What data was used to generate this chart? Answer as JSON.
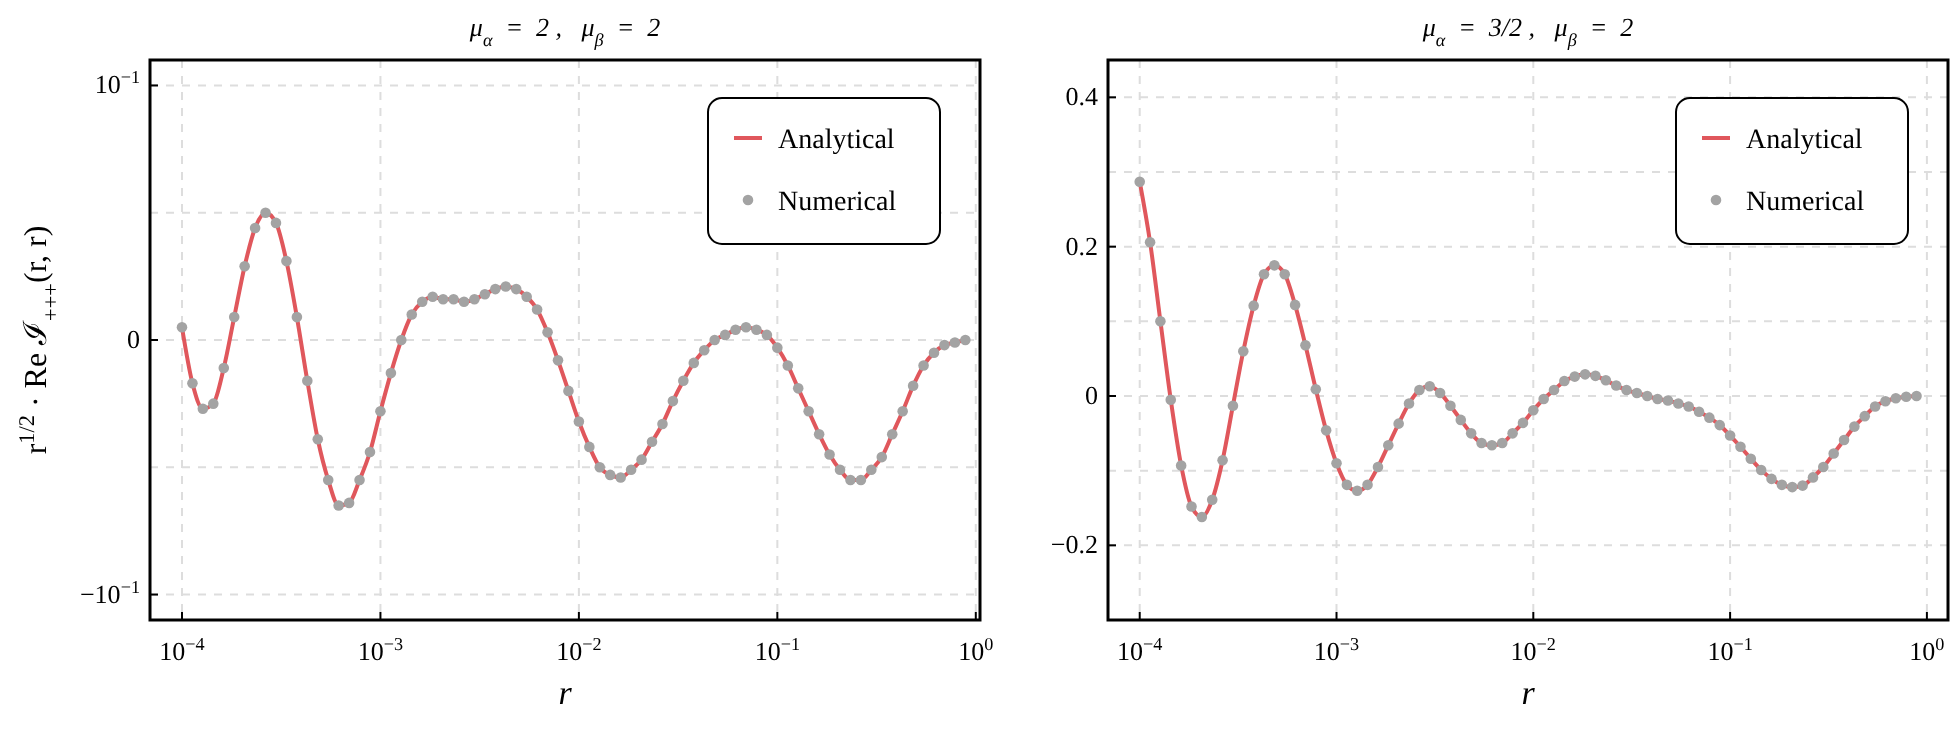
{
  "chart_data": [
    {
      "type": "line",
      "title": "μ$_{α}$  =  2 ,   μ$_{β}$  =  2",
      "xlabel": "r",
      "ylabel": "r$^{1/2}$ · Re ℐ$_{+++}$(r, r)",
      "log": "x",
      "grid": true,
      "legend": "top right",
      "xlim": [
        6.9e-05,
        1.05
      ],
      "xticks": [
        {
          "value": 0.0001,
          "label": "10$^{−4}$"
        },
        {
          "value": 0.001,
          "label": "10$^{−3}$"
        },
        {
          "value": 0.01,
          "label": "10$^{−2}$"
        },
        {
          "value": 0.1,
          "label": "10$^{−1}$"
        },
        {
          "value": 1,
          "label": "10$^{0}$"
        }
      ],
      "ylim": [
        -0.11,
        0.11
      ],
      "yticks": [
        {
          "value": -0.1,
          "label": "−10$^{−1}$"
        },
        {
          "value": -0.05,
          "label": null
        },
        0,
        {
          "value": 0.05,
          "label": null
        },
        {
          "value": 0.1,
          "label": "10$^{−1}$"
        }
      ],
      "x": [
        0.0001,
        0.0001129,
        0.0001274,
        0.0001438,
        0.0001624,
        0.0001833,
        0.0002069,
        0.0002336,
        0.0002637,
        0.0002976,
        0.000336,
        0.0003793,
        0.0004281,
        0.0004833,
        0.0005456,
        0.0006158,
        0.0006952,
        0.0007848,
        0.0008859,
        0.001,
        0.001129,
        0.001274,
        0.001438,
        0.001624,
        0.001833,
        0.002069,
        0.002336,
        0.002637,
        0.002976,
        0.00336,
        0.003793,
        0.004281,
        0.004833,
        0.005456,
        0.006158,
        0.006952,
        0.007848,
        0.008859,
        0.01,
        0.01129,
        0.01274,
        0.01438,
        0.01624,
        0.01833,
        0.02069,
        0.02336,
        0.02637,
        0.02976,
        0.0336,
        0.03793,
        0.04281,
        0.04833,
        0.05456,
        0.06158,
        0.06952,
        0.07848,
        0.08859,
        0.1,
        0.1129,
        0.1274,
        0.1438,
        0.1624,
        0.1833,
        0.2069,
        0.2336,
        0.2637,
        0.2976,
        0.336,
        0.3793,
        0.4281,
        0.4833,
        0.5456,
        0.6158,
        0.6952,
        0.7848,
        0.8859
      ],
      "series": [
        {
          "name": "Analytical",
          "type": "line",
          "color": "#e0575c",
          "values": [
            0.005,
            -0.017,
            -0.027,
            -0.025,
            -0.011,
            0.009,
            0.029,
            0.044,
            0.05,
            0.046,
            0.031,
            0.009,
            -0.016,
            -0.039,
            -0.055,
            -0.065,
            -0.064,
            -0.055,
            -0.044,
            -0.028,
            -0.013,
            0,
            0.01,
            0.015,
            0.017,
            0.016,
            0.016,
            0.015,
            0.016,
            0.018,
            0.02,
            0.021,
            0.02,
            0.017,
            0.012,
            0.003,
            -0.008,
            -0.02,
            -0.032,
            -0.042,
            -0.05,
            -0.053,
            -0.054,
            -0.051,
            -0.047,
            -0.04,
            -0.033,
            -0.024,
            -0.016,
            -0.009,
            -0.004,
            0,
            0.002,
            0.004,
            0.005,
            0.004,
            0.002,
            -0.003,
            -0.01,
            -0.019,
            -0.028,
            -0.037,
            -0.045,
            -0.051,
            -0.055,
            -0.055,
            -0.051,
            -0.046,
            -0.037,
            -0.028,
            -0.018,
            -0.01,
            -0.005,
            -0.002,
            -0.001,
            0
          ]
        },
        {
          "name": "Numerical",
          "type": "scatter",
          "marker": "circle",
          "color": "#a3a3a3",
          "values": [
            0.005,
            -0.017,
            -0.027,
            -0.025,
            -0.011,
            0.009,
            0.029,
            0.044,
            0.05,
            0.046,
            0.031,
            0.009,
            -0.016,
            -0.039,
            -0.055,
            -0.065,
            -0.064,
            -0.055,
            -0.044,
            -0.028,
            -0.013,
            0,
            0.01,
            0.015,
            0.017,
            0.016,
            0.016,
            0.015,
            0.016,
            0.018,
            0.02,
            0.021,
            0.02,
            0.017,
            0.012,
            0.003,
            -0.008,
            -0.02,
            -0.032,
            -0.042,
            -0.05,
            -0.053,
            -0.054,
            -0.051,
            -0.047,
            -0.04,
            -0.033,
            -0.024,
            -0.016,
            -0.009,
            -0.004,
            0,
            0.002,
            0.004,
            0.005,
            0.004,
            0.002,
            -0.003,
            -0.01,
            -0.019,
            -0.028,
            -0.037,
            -0.045,
            -0.051,
            -0.055,
            -0.055,
            -0.051,
            -0.046,
            -0.037,
            -0.028,
            -0.018,
            -0.01,
            -0.005,
            -0.002,
            -0.001,
            0
          ]
        }
      ]
    },
    {
      "type": "line",
      "title": "μ$_{α}$  =  3/2 ,   μ$_{β}$  =  2",
      "xlabel": "r",
      "log": "x",
      "grid": true,
      "legend": "top right",
      "xlim": [
        6.9e-05,
        1.28
      ],
      "xticks": [
        {
          "value": 0.0001,
          "label": "10$^{−4}$"
        },
        {
          "value": 0.001,
          "label": "10$^{−3}$"
        },
        {
          "value": 0.01,
          "label": "10$^{−2}$"
        },
        {
          "value": 0.1,
          "label": "10$^{−1}$"
        },
        {
          "value": 1,
          "label": "10$^{0}$"
        }
      ],
      "ylim": [
        -0.3,
        0.45
      ],
      "yticks": [
        {
          "value": -0.2,
          "label": "−0.2"
        },
        {
          "value": -0.1,
          "label": null
        },
        0,
        {
          "value": 0.1,
          "label": null
        },
        0.2,
        {
          "value": 0.3,
          "label": null
        },
        0.4
      ],
      "x": [
        0.0001,
        0.0001129,
        0.0001274,
        0.0001438,
        0.0001624,
        0.0001833,
        0.0002069,
        0.0002336,
        0.0002637,
        0.0002976,
        0.000336,
        0.0003793,
        0.0004281,
        0.0004833,
        0.0005456,
        0.0006158,
        0.0006952,
        0.0007848,
        0.0008859,
        0.001,
        0.001129,
        0.001274,
        0.001438,
        0.001624,
        0.001833,
        0.002069,
        0.002336,
        0.002637,
        0.002976,
        0.00336,
        0.003793,
        0.004281,
        0.004833,
        0.005456,
        0.006158,
        0.006952,
        0.007848,
        0.008859,
        0.01,
        0.01129,
        0.01274,
        0.01438,
        0.01624,
        0.01833,
        0.02069,
        0.02336,
        0.02637,
        0.02976,
        0.0336,
        0.03793,
        0.04281,
        0.04833,
        0.05456,
        0.06158,
        0.06952,
        0.07848,
        0.08859,
        0.1,
        0.1129,
        0.1274,
        0.1438,
        0.1624,
        0.1833,
        0.2069,
        0.2336,
        0.2637,
        0.2976,
        0.336,
        0.3793,
        0.4281,
        0.4833,
        0.5456,
        0.6158,
        0.6952,
        0.7848,
        0.8859
      ],
      "series": [
        {
          "name": "Analytical",
          "type": "line",
          "color": "#e0575c",
          "values": [
            0.287,
            0.206,
            0.1,
            -0.005,
            -0.093,
            -0.148,
            -0.162,
            -0.139,
            -0.086,
            -0.013,
            0.06,
            0.121,
            0.163,
            0.175,
            0.163,
            0.122,
            0.068,
            0.009,
            -0.046,
            -0.09,
            -0.119,
            -0.127,
            -0.119,
            -0.095,
            -0.066,
            -0.037,
            -0.01,
            0.008,
            0.013,
            0.004,
            -0.013,
            -0.032,
            -0.05,
            -0.063,
            -0.066,
            -0.063,
            -0.05,
            -0.036,
            -0.019,
            -0.004,
            0.008,
            0.02,
            0.026,
            0.029,
            0.027,
            0.021,
            0.014,
            0.008,
            0.004,
            0,
            -0.004,
            -0.006,
            -0.01,
            -0.014,
            -0.021,
            -0.029,
            -0.039,
            -0.053,
            -0.068,
            -0.084,
            -0.099,
            -0.111,
            -0.119,
            -0.122,
            -0.12,
            -0.109,
            -0.095,
            -0.077,
            -0.059,
            -0.041,
            -0.027,
            -0.014,
            -0.007,
            -0.003,
            -0.001,
            0
          ]
        },
        {
          "name": "Numerical",
          "type": "scatter",
          "marker": "circle",
          "color": "#a3a3a3",
          "values": [
            0.287,
            0.206,
            0.1,
            -0.005,
            -0.093,
            -0.148,
            -0.162,
            -0.139,
            -0.086,
            -0.013,
            0.06,
            0.121,
            0.163,
            0.175,
            0.163,
            0.122,
            0.068,
            0.009,
            -0.046,
            -0.09,
            -0.119,
            -0.127,
            -0.119,
            -0.095,
            -0.066,
            -0.037,
            -0.01,
            0.008,
            0.013,
            0.004,
            -0.013,
            -0.032,
            -0.05,
            -0.063,
            -0.066,
            -0.063,
            -0.05,
            -0.036,
            -0.019,
            -0.004,
            0.008,
            0.02,
            0.026,
            0.029,
            0.027,
            0.021,
            0.014,
            0.008,
            0.004,
            0,
            -0.004,
            -0.006,
            -0.01,
            -0.014,
            -0.021,
            -0.029,
            -0.039,
            -0.053,
            -0.068,
            -0.084,
            -0.099,
            -0.111,
            -0.119,
            -0.122,
            -0.12,
            -0.109,
            -0.095,
            -0.077,
            -0.059,
            -0.041,
            -0.027,
            -0.014,
            -0.007,
            -0.003,
            -0.001,
            0
          ]
        }
      ]
    }
  ]
}
